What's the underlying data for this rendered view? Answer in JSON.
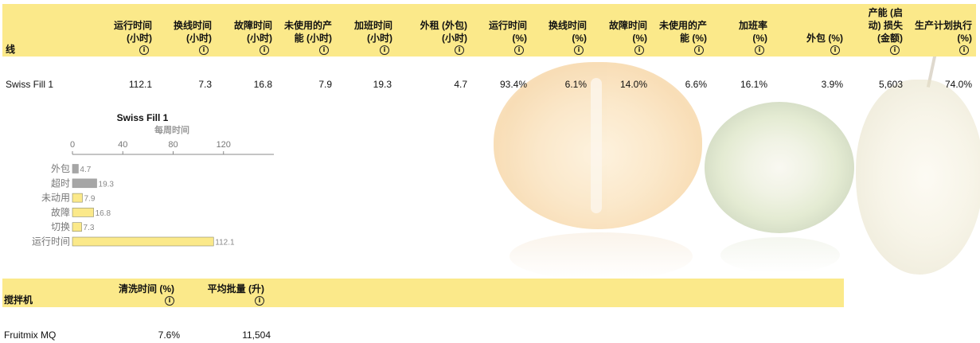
{
  "main_table": {
    "row_header": "线",
    "columns": [
      {
        "label_lines": [
          "运行时间",
          "(小时)"
        ]
      },
      {
        "label_lines": [
          "换线时间",
          "(小时)"
        ]
      },
      {
        "label_lines": [
          "故障时间",
          "(小时)"
        ]
      },
      {
        "label_lines": [
          "未使用的产",
          "能 (小时)"
        ]
      },
      {
        "label_lines": [
          "加班时间",
          "(小时)"
        ]
      },
      {
        "label_lines": [
          "外租 (外包)",
          "(小时)"
        ]
      },
      {
        "label_lines": [
          "运行时间",
          "(%)"
        ]
      },
      {
        "label_lines": [
          "换线时间",
          "(%)"
        ]
      },
      {
        "label_lines": [
          "故障时间",
          "(%)"
        ]
      },
      {
        "label_lines": [
          "未使用的产",
          "能 (%)"
        ]
      },
      {
        "label_lines": [
          "加班率",
          "(%)"
        ]
      },
      {
        "label_lines": [
          "外包 (%)"
        ]
      },
      {
        "label_lines": [
          "产能 (启",
          "动) 损失",
          "(金额)"
        ]
      },
      {
        "label_lines": [
          "生产计划执行",
          "(%)"
        ]
      }
    ],
    "info_glyph": "i",
    "rows": [
      {
        "name": "Swiss Fill 1",
        "values": [
          "112.1",
          "7.3",
          "16.8",
          "7.9",
          "19.3",
          "4.7",
          "93.4%",
          "6.1%",
          "14.0%",
          "6.6%",
          "16.1%",
          "3.9%",
          "5,603",
          "74.0%"
        ]
      }
    ]
  },
  "chart_data": {
    "type": "bar",
    "orientation": "horizontal",
    "title": "Swiss Fill 1",
    "subtitle": "每周时间",
    "xlim": [
      0,
      160
    ],
    "xticks": [
      "0",
      "40",
      "80",
      "120"
    ],
    "categories": [
      "外包",
      "超时",
      "未动用",
      "故障",
      "切换",
      "运行时间"
    ],
    "values": [
      4.7,
      19.3,
      7.9,
      16.8,
      7.3,
      112.1
    ],
    "value_labels": [
      "4.7",
      "19.3",
      "7.9",
      "16.8",
      "7.3",
      "112.1"
    ],
    "colors": [
      "#a6a6a6",
      "#a6a6a6",
      "#fbe98a",
      "#fbe98a",
      "#fbe98a",
      "#fbe98a"
    ]
  },
  "mixer_table": {
    "row_header": "搅拌机",
    "columns": [
      {
        "label": "清洗时间 (%)"
      },
      {
        "label": "平均批量 (升)"
      }
    ],
    "info_glyph": "i",
    "rows": [
      {
        "name": "Fruitmix MQ",
        "values": [
          "7.6%",
          "11,504"
        ]
      }
    ]
  },
  "colors": {
    "header_bg": "#fbe98a",
    "bar_yellow": "#fbe98a",
    "bar_gray": "#a6a6a6"
  }
}
